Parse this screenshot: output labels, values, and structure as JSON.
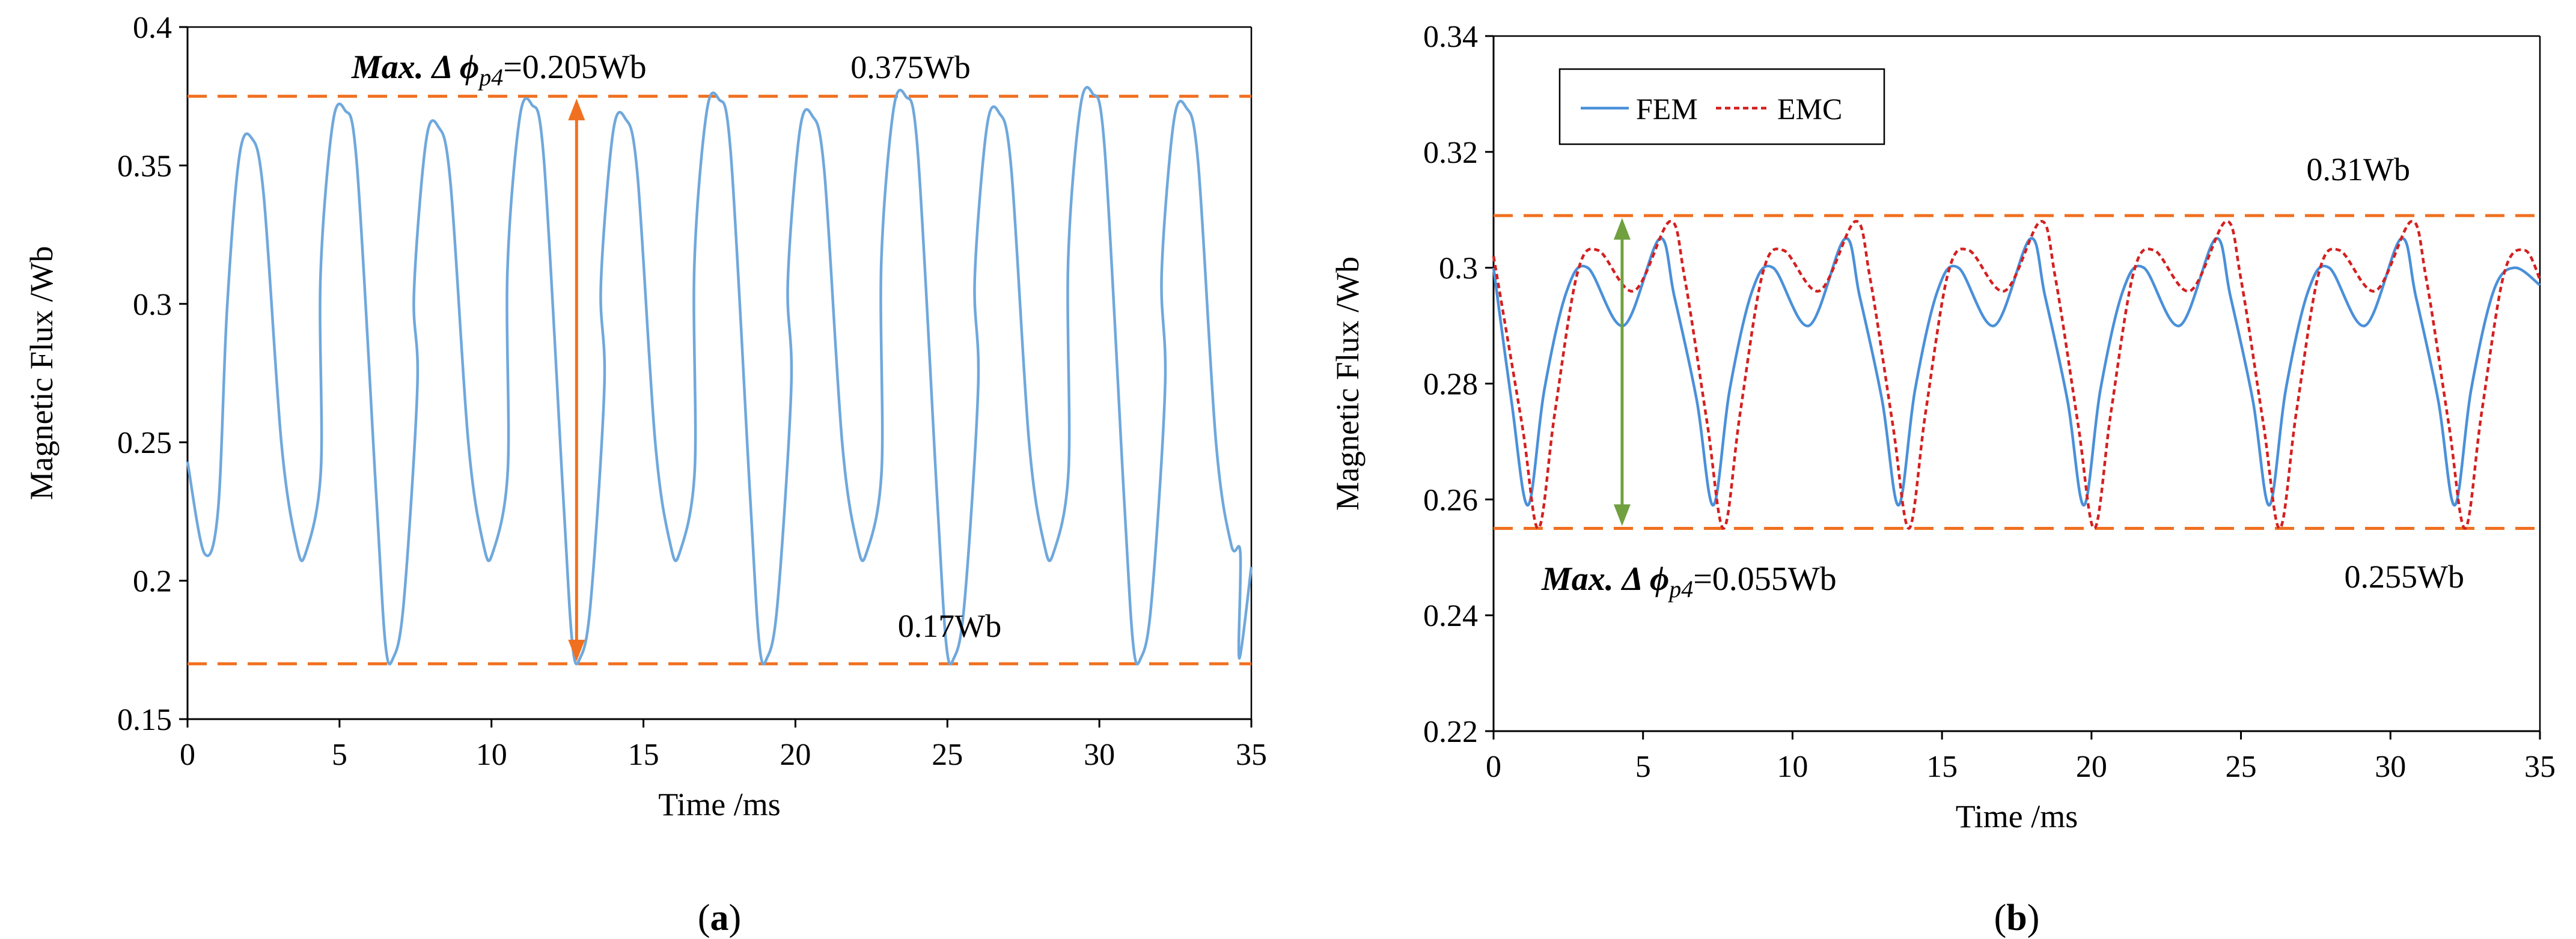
{
  "colors": {
    "fem": "#4a90d9",
    "fem_a": "#6fa8dc",
    "emc": "#d42020",
    "guide": "#f07020",
    "arrow_a": "#f07020",
    "arrow_b": "#70a040",
    "axis": "#000000"
  },
  "chart_data": [
    {
      "panel": "(a)",
      "panel_letter": "a",
      "type": "line",
      "xlabel": "Time /ms",
      "ylabel": "Magnetic Flux /Wb",
      "xlim": [
        0,
        35
      ],
      "ylim": [
        0.15,
        0.4
      ],
      "xticks": [
        0,
        5,
        10,
        15,
        20,
        25,
        30,
        35
      ],
      "yticks": [
        0.15,
        0.2,
        0.25,
        0.3,
        0.35,
        0.4
      ],
      "ytick_labels": [
        "0.15",
        "0.2",
        "0.25",
        "0.3",
        "0.35",
        "0.4"
      ],
      "hlines": [
        0.375,
        0.17
      ],
      "hline_labels": [
        "0.375Wb",
        "0.17Wb"
      ],
      "arrow": {
        "x": 12.8,
        "y_top": 0.375,
        "y_bottom": 0.17
      },
      "annotation": {
        "bold": "Max. Δ ",
        "phi": "ϕ",
        "sub": "p4",
        "value": "=0.205Wb"
      },
      "series": [
        {
          "name": "FEM",
          "peak_interval_ms": 3.075,
          "first_peak_ms": 2.0,
          "start_value": 0.243,
          "cycles": [
            {
              "peak_left": 0.358,
              "peak_right": 0.36,
              "trough": 0.21
            },
            {
              "peak_left": 0.37,
              "peak_right": 0.37,
              "trough": 0.172
            },
            {
              "peak_left": 0.364,
              "peak_right": 0.364,
              "trough": 0.21
            },
            {
              "peak_left": 0.372,
              "peak_right": 0.372,
              "trough": 0.172
            },
            {
              "peak_left": 0.367,
              "peak_right": 0.367,
              "trough": 0.21
            },
            {
              "peak_left": 0.374,
              "peak_right": 0.374,
              "trough": 0.172
            },
            {
              "peak_left": 0.368,
              "peak_right": 0.368,
              "trough": 0.21
            },
            {
              "peak_left": 0.375,
              "peak_right": 0.375,
              "trough": 0.172
            },
            {
              "peak_left": 0.369,
              "peak_right": 0.369,
              "trough": 0.21
            },
            {
              "peak_left": 0.376,
              "peak_right": 0.376,
              "trough": 0.172
            },
            {
              "peak_left": 0.371,
              "peak_right": 0.371,
              "trough": 0.21
            }
          ],
          "end_value": 0.205
        }
      ]
    },
    {
      "panel": "(b)",
      "panel_letter": "b",
      "type": "line",
      "xlabel": "Time /ms",
      "ylabel": "Magnetic Flux /Wb",
      "xlim": [
        0,
        35
      ],
      "ylim": [
        0.22,
        0.34
      ],
      "xticks": [
        0,
        5,
        10,
        15,
        20,
        25,
        30,
        35
      ],
      "yticks": [
        0.22,
        0.24,
        0.26,
        0.28,
        0.3,
        0.32,
        0.34
      ],
      "ytick_labels": [
        "0.22",
        "0.24",
        "0.26",
        "0.28",
        "0.3",
        "0.32",
        "0.34"
      ],
      "hlines": [
        0.309,
        0.255
      ],
      "hline_labels": [
        "0.31Wb",
        "0.255Wb"
      ],
      "arrow": {
        "x": 4.3,
        "y_top": 0.309,
        "y_bottom": 0.255
      },
      "annotation": {
        "bold": "Max. Δ ",
        "phi": "ϕ",
        "sub": "p4",
        "value": "=0.055Wb"
      },
      "legend": [
        "FEM",
        "EMC"
      ],
      "series": [
        {
          "name": "FEM",
          "style": "solid",
          "period_ms": 6.2,
          "trough_value": 0.259,
          "trough_offset_ms": 1.15,
          "shoulder_value": 0.3,
          "dip_value": 0.29,
          "peak_value": 0.305,
          "start_value": 0.3
        },
        {
          "name": "EMC",
          "style": "dotted",
          "period_ms": 6.2,
          "trough_value": 0.255,
          "trough_offset_ms": 1.5,
          "shoulder_value": 0.303,
          "dip_value": 0.296,
          "peak_value": 0.308,
          "start_value": 0.302
        }
      ]
    }
  ]
}
